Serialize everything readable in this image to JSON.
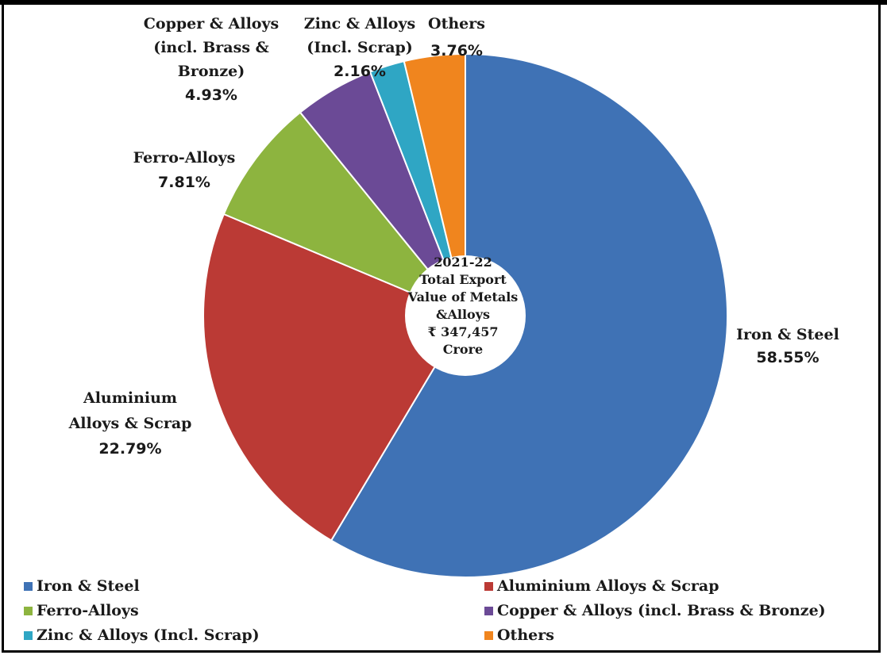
{
  "chart_data": {
    "type": "pie",
    "style": "doughnut",
    "center_text": [
      "2021-22",
      "Total Export",
      "Value of Metals",
      "&Alloys",
      "₹ 347,457",
      "Crore"
    ],
    "slices": [
      {
        "name": "Iron & Steel",
        "value": 58.55,
        "label_lines": [
          "Iron  & Steel"
        ],
        "value_label": "58.55%",
        "color": "#3f72b5"
      },
      {
        "name": "Aluminium Alloys & Scrap",
        "value": 22.79,
        "label_lines": [
          "Aluminium",
          "Alloys & Scrap"
        ],
        "value_label": "22.79%",
        "color": "#bb3a35"
      },
      {
        "name": "Ferro-Alloys",
        "value": 7.81,
        "label_lines": [
          "Ferro-Alloys"
        ],
        "value_label": "7.81%",
        "color": "#8db43f"
      },
      {
        "name": "Copper & Alloys (incl. Brass & Bronze)",
        "value": 4.93,
        "label_lines": [
          "Copper  & Alloys",
          "(incl. Brass &",
          "Bronze)"
        ],
        "value_label": "4.93%",
        "color": "#6b4a96"
      },
      {
        "name": "Zinc & Alloys (Incl. Scrap)",
        "value": 2.16,
        "label_lines": [
          "Zinc & Alloys",
          "(Incl. Scrap)"
        ],
        "value_label": "2.16%",
        "color": "#2fa6c4"
      },
      {
        "name": "Others",
        "value": 3.76,
        "label_lines": [
          "Others"
        ],
        "value_label": "3.76%",
        "color": "#f0851e"
      }
    ],
    "legend": {
      "placement": "bottom",
      "entries": [
        "Iron & Steel",
        "Aluminium Alloys & Scrap",
        "Ferro-Alloys",
        "Copper & Alloys (incl. Brass & Bronze)",
        "Zinc & Alloys (Incl. Scrap)",
        "Others"
      ]
    }
  }
}
